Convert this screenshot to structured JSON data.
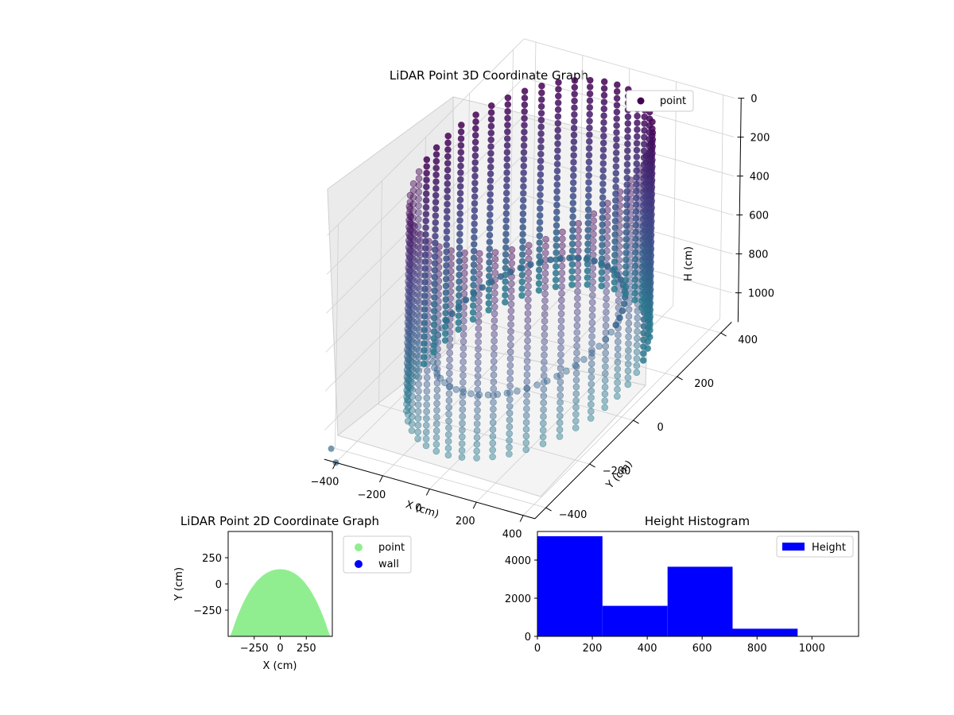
{
  "chart_data": [
    {
      "type": "scatter3d",
      "title": "LiDAR Point 3D Coordinate Graph",
      "xlabel": "X (cm)",
      "ylabel": "Y (cm)",
      "zlabel": "H (cm)",
      "xticks": [
        "−400",
        "−200",
        "0",
        "200",
        "400"
      ],
      "yticks": [
        "−400",
        "−200",
        "0",
        "200",
        "400"
      ],
      "zticks": [
        "0",
        "200",
        "400",
        "600",
        "800",
        "1000"
      ],
      "xlim": [
        -450,
        450
      ],
      "ylim": [
        -450,
        450
      ],
      "zlim": [
        0,
        1150
      ],
      "z_inverted": true,
      "colormap": "viridis",
      "legend": {
        "placement": "top-right",
        "entries": [
          "point"
        ]
      },
      "series": [
        {
          "name": "point",
          "shape": "cylinder",
          "radius_cm": 380,
          "h_range": [
            0,
            1050
          ],
          "color": "#440154"
        }
      ],
      "outliers": [
        {
          "x": -430,
          "y": -440,
          "h": 1100
        },
        {
          "x": -400,
          "y": -450,
          "h": 1150
        }
      ],
      "grid": true
    },
    {
      "type": "scatter",
      "title": "LiDAR Point 2D Coordinate Graph",
      "xlabel": "X (cm)",
      "ylabel": "Y (cm)",
      "xticks": [
        "−250",
        "0",
        "250"
      ],
      "yticks": [
        "250",
        "0",
        "−250"
      ],
      "xlim": [
        -500,
        500
      ],
      "ylim": [
        -500,
        500
      ],
      "legend": {
        "placement": "outside-right",
        "entries": [
          "point",
          "wall"
        ]
      },
      "series": [
        {
          "name": "point",
          "color": "#90ee90",
          "region": "upper-half-disk",
          "radius_cm": 500,
          "y_max": 140
        },
        {
          "name": "wall",
          "color": "#0000ff"
        }
      ]
    },
    {
      "type": "bar",
      "title": "Height Histogram",
      "xticks": [
        "0",
        "200",
        "400",
        "600",
        "800",
        "1000"
      ],
      "yticks": [
        "0",
        "2000",
        "4000"
      ],
      "xlim": [
        0,
        1170
      ],
      "ylim": [
        0,
        5500
      ],
      "legend": {
        "placement": "top-right",
        "entries": [
          "Height"
        ]
      },
      "series": [
        {
          "name": "Height",
          "color": "#0000ff",
          "bins": [
            {
              "start": 0,
              "end": 237,
              "count": 5250
            },
            {
              "start": 237,
              "end": 474,
              "count": 1600
            },
            {
              "start": 474,
              "end": 711,
              "count": 3650
            },
            {
              "start": 711,
              "end": 948,
              "count": 400
            },
            {
              "start": 948,
              "end": 1170,
              "count": 20
            }
          ]
        }
      ]
    }
  ]
}
